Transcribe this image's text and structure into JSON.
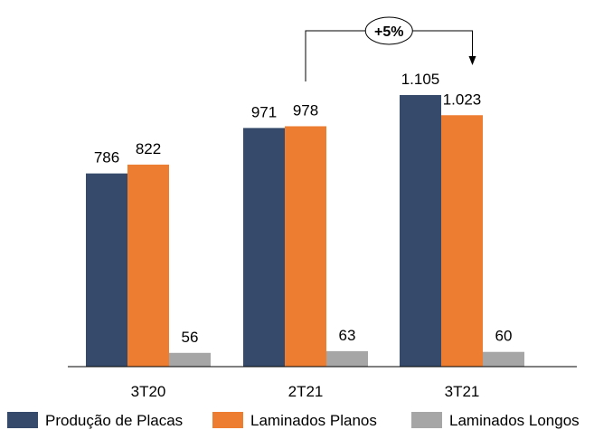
{
  "chart_data": {
    "type": "bar",
    "categories": [
      "3T20",
      "2T21",
      "3T21"
    ],
    "series": [
      {
        "name": "Produção de Placas",
        "values": [
          786,
          971,
          1105
        ],
        "labels": [
          "786",
          "971",
          "1.105"
        ],
        "color": "#364b6b"
      },
      {
        "name": "Laminados Planos",
        "values": [
          822,
          978,
          1023
        ],
        "labels": [
          "822",
          "978",
          "1.023"
        ],
        "color": "#ed7d31"
      },
      {
        "name": "Laminados Longos",
        "values": [
          56,
          63,
          60
        ],
        "labels": [
          "56",
          "63",
          "60"
        ],
        "color": "#a6a6a6"
      }
    ],
    "ylim": [
      0,
      1150
    ],
    "grid": false,
    "legend_position": "bottom",
    "annotation": {
      "text": "+5%",
      "from_category": "2T21",
      "to_category": "3T21"
    }
  }
}
